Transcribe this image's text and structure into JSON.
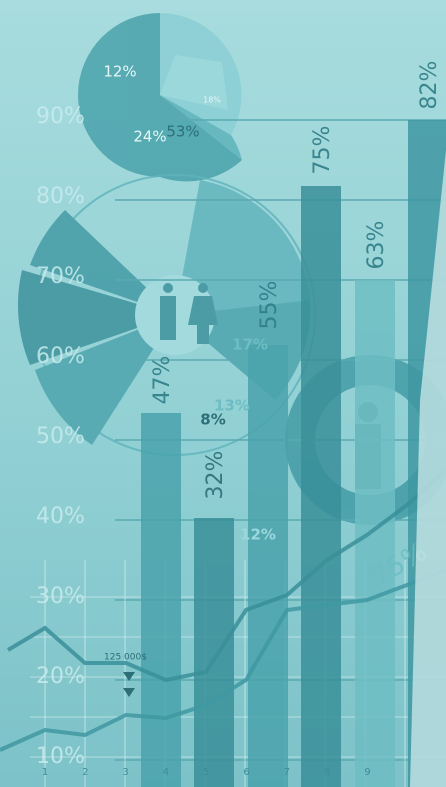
{
  "y_axis_labels": [
    "90%",
    "80%",
    "70%",
    "60%",
    "50%",
    "40%",
    "30%",
    "20%",
    "10%"
  ],
  "bar_labels": [
    "47%",
    "32%",
    "55%",
    "75%",
    "63%",
    "82%"
  ],
  "pie_labels": [
    "12%",
    "18%",
    "24%",
    "53%"
  ],
  "radial_labels": [
    "8%",
    "13%",
    "17%",
    "12%"
  ],
  "line_annotation": "125 000$",
  "curve_label": "75%",
  "x_axis_labels": [
    "1",
    "2",
    "3",
    "4",
    "5",
    "6",
    "7",
    "8",
    "9"
  ]
}
